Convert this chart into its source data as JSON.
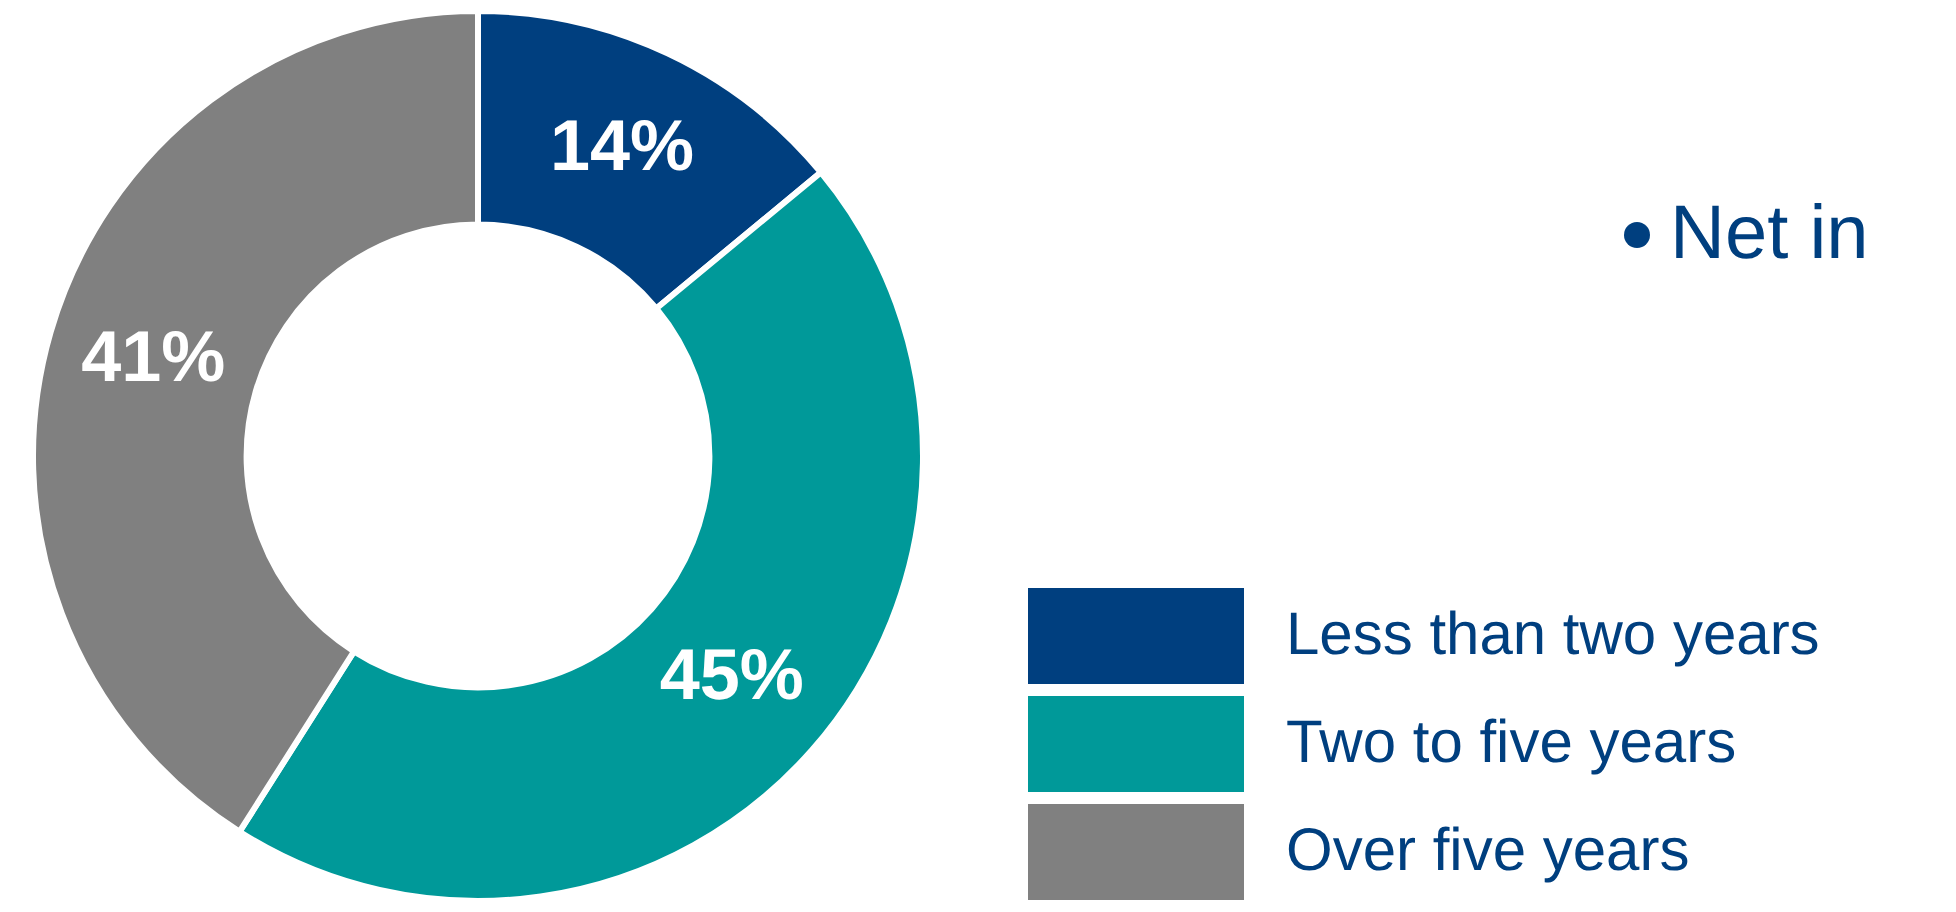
{
  "chart_data": {
    "type": "donut",
    "categories": [
      "Less than two years",
      "Two to five years",
      "Over five years"
    ],
    "values": [
      14,
      45,
      41
    ],
    "colors": [
      "#003f7f",
      "#009999",
      "#808080"
    ],
    "value_labels": [
      "14%",
      "45%",
      "41%"
    ],
    "legend": "bottom right",
    "annotations": [
      "Net in"
    ]
  }
}
